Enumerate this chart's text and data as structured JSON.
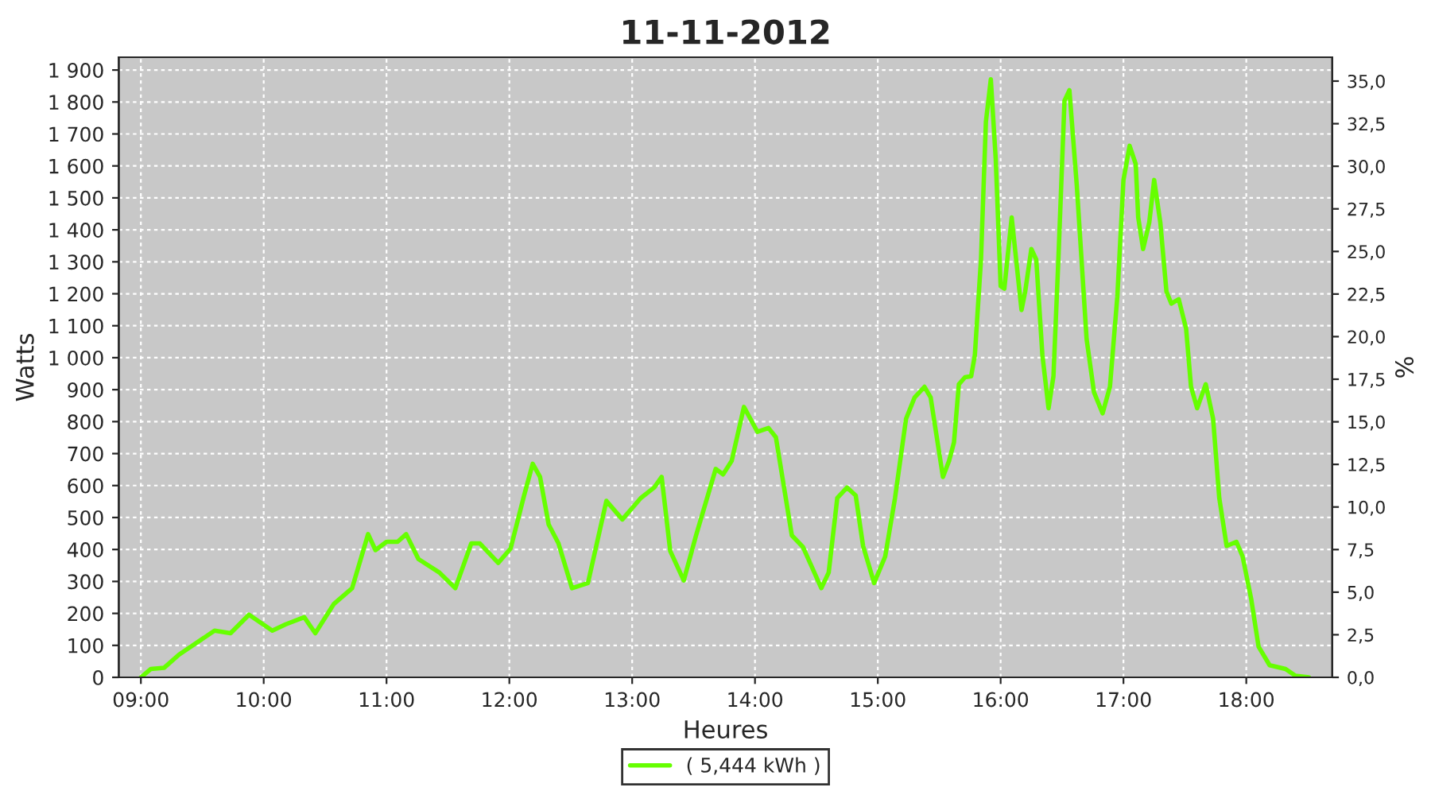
{
  "chart_data": {
    "type": "line",
    "title": "11-11-2012",
    "xlabel": "Heures",
    "ylabel": "Watts",
    "y2label": "%",
    "xlim": [
      8.82,
      18.7
    ],
    "ylim": [
      0,
      1940
    ],
    "y2lim": [
      0,
      36.4
    ],
    "xticks": [
      {
        "value": 9,
        "label": "09:00"
      },
      {
        "value": 10,
        "label": "10:00"
      },
      {
        "value": 11,
        "label": "11:00"
      },
      {
        "value": 12,
        "label": "12:00"
      },
      {
        "value": 13,
        "label": "13:00"
      },
      {
        "value": 14,
        "label": "14:00"
      },
      {
        "value": 15,
        "label": "15:00"
      },
      {
        "value": 16,
        "label": "16:00"
      },
      {
        "value": 17,
        "label": "17:00"
      },
      {
        "value": 18,
        "label": "18:00"
      }
    ],
    "yticks": [
      0,
      100,
      200,
      300,
      400,
      500,
      600,
      700,
      800,
      900,
      {
        "value": 1000,
        "label": "1 000"
      },
      {
        "value": 1100,
        "label": "1 100"
      },
      {
        "value": 1200,
        "label": "1 200"
      },
      {
        "value": 1300,
        "label": "1 300"
      },
      {
        "value": 1400,
        "label": "1 400"
      },
      {
        "value": 1500,
        "label": "1 500"
      },
      {
        "value": 1600,
        "label": "1 600"
      },
      {
        "value": 1700,
        "label": "1 700"
      },
      {
        "value": 1800,
        "label": "1 800"
      },
      {
        "value": 1900,
        "label": "1 900"
      }
    ],
    "y2ticks": [
      {
        "value": 0,
        "label": "0,0"
      },
      {
        "value": 2.5,
        "label": "2,5"
      },
      {
        "value": 5,
        "label": "5,0"
      },
      {
        "value": 7.5,
        "label": "7,5"
      },
      {
        "value": 10,
        "label": "10,0"
      },
      {
        "value": 12.5,
        "label": "12,5"
      },
      {
        "value": 15,
        "label": "15,0"
      },
      {
        "value": 17.5,
        "label": "17,5"
      },
      {
        "value": 20,
        "label": "20,0"
      },
      {
        "value": 22.5,
        "label": "22,5"
      },
      {
        "value": 25,
        "label": "25,0"
      },
      {
        "value": 27.5,
        "label": "27,5"
      },
      {
        "value": 30,
        "label": "30,0"
      },
      {
        "value": 32.5,
        "label": "32,5"
      },
      {
        "value": 35,
        "label": "35,0"
      }
    ],
    "grid": true,
    "legend": "bottom",
    "marker": "none",
    "line_style": "solid",
    "series": [
      {
        "name": "( 5,444 kWh )",
        "color": "#66ff00",
        "x": [
          9.0,
          9.08,
          9.19,
          9.31,
          9.6,
          9.73,
          9.88,
          10.07,
          10.18,
          10.33,
          10.42,
          10.57,
          10.72,
          10.85,
          10.91,
          11.0,
          11.09,
          11.16,
          11.26,
          11.43,
          11.56,
          11.69,
          11.76,
          11.91,
          12.01,
          12.12,
          12.19,
          12.25,
          12.32,
          12.4,
          12.51,
          12.64,
          12.79,
          12.92,
          13.07,
          13.18,
          13.24,
          13.31,
          13.42,
          13.52,
          13.68,
          13.74,
          13.81,
          13.91,
          14.02,
          14.11,
          14.17,
          14.3,
          14.39,
          14.54,
          14.6,
          14.67,
          14.75,
          14.82,
          14.88,
          14.97,
          15.06,
          15.14,
          15.23,
          15.3,
          15.38,
          15.43,
          15.53,
          15.58,
          15.62,
          15.66,
          15.71,
          15.76,
          15.79,
          15.84,
          15.88,
          15.92,
          15.96,
          16.0,
          16.03,
          16.09,
          16.14,
          16.17,
          16.2,
          16.25,
          16.29,
          16.34,
          16.39,
          16.43,
          16.47,
          16.52,
          16.56,
          16.62,
          16.7,
          16.76,
          16.83,
          16.89,
          16.95,
          17.0,
          17.05,
          17.1,
          17.12,
          17.16,
          17.21,
          17.25,
          17.3,
          17.35,
          17.39,
          17.45,
          17.51,
          17.55,
          17.6,
          17.67,
          17.73,
          17.78,
          17.84,
          17.92,
          17.97,
          18.04,
          18.1,
          18.19,
          18.32,
          18.4,
          18.51
        ],
        "values": [
          0,
          26,
          30,
          71,
          146,
          138,
          196,
          146,
          166,
          188,
          138,
          229,
          279,
          448,
          398,
          424,
          424,
          448,
          370,
          328,
          279,
          419,
          419,
          358,
          403,
          569,
          668,
          627,
          478,
          419,
          279,
          295,
          552,
          494,
          561,
          594,
          627,
          395,
          303,
          444,
          652,
          635,
          677,
          846,
          768,
          780,
          751,
          444,
          408,
          279,
          328,
          561,
          594,
          569,
          411,
          295,
          378,
          561,
          809,
          876,
          909,
          876,
          627,
          677,
          735,
          917,
          939,
          942,
          1008,
          1307,
          1738,
          1871,
          1622,
          1224,
          1216,
          1439,
          1257,
          1149,
          1207,
          1340,
          1307,
          1008,
          842,
          942,
          1307,
          1804,
          1837,
          1539,
          1058,
          892,
          826,
          909,
          1191,
          1556,
          1663,
          1606,
          1439,
          1340,
          1423,
          1556,
          1423,
          1207,
          1169,
          1183,
          1091,
          909,
          842,
          917,
          809,
          561,
          411,
          424,
          378,
          245,
          96,
          38,
          26,
          5,
          0
        ]
      }
    ]
  }
}
